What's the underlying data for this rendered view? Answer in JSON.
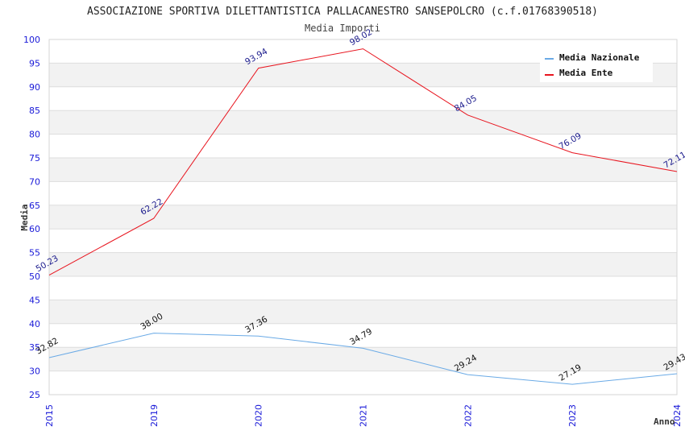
{
  "chart_data": {
    "type": "line",
    "title": "ASSOCIAZIONE SPORTIVA DILETTANTISTICA PALLACANESTRO SANSEPOLCRO (c.f.01768390518)",
    "subtitle": "Media Importi",
    "xlabel": "Anno",
    "ylabel": "Media",
    "categories": [
      "2015",
      "2019",
      "2020",
      "2021",
      "2022",
      "2023",
      "2024"
    ],
    "ylim": [
      25,
      100
    ],
    "yticks": [
      "25",
      "30",
      "35",
      "40",
      "45",
      "50",
      "55",
      "60",
      "65",
      "70",
      "75",
      "80",
      "85",
      "90",
      "95",
      "100"
    ],
    "grid": true,
    "legend_position": "top-right",
    "series": [
      {
        "name": "Media Nazionale",
        "color": "#6aaae6",
        "label_color": "#111111",
        "values": [
          32.82,
          38.0,
          37.36,
          34.79,
          29.24,
          27.19,
          29.43
        ],
        "labels": [
          "32.82",
          "38.00",
          "37.36",
          "34.79",
          "29.24",
          "27.19",
          "29.43"
        ]
      },
      {
        "name": "Media Ente",
        "color": "#e8141e",
        "label_color": "#1a1a8c",
        "values": [
          50.23,
          62.22,
          93.94,
          98.02,
          84.05,
          76.09,
          72.11
        ],
        "labels": [
          "50.23",
          "62.22",
          "93.94",
          "98.02",
          "84.05",
          "76.09",
          "72.11"
        ]
      }
    ]
  }
}
